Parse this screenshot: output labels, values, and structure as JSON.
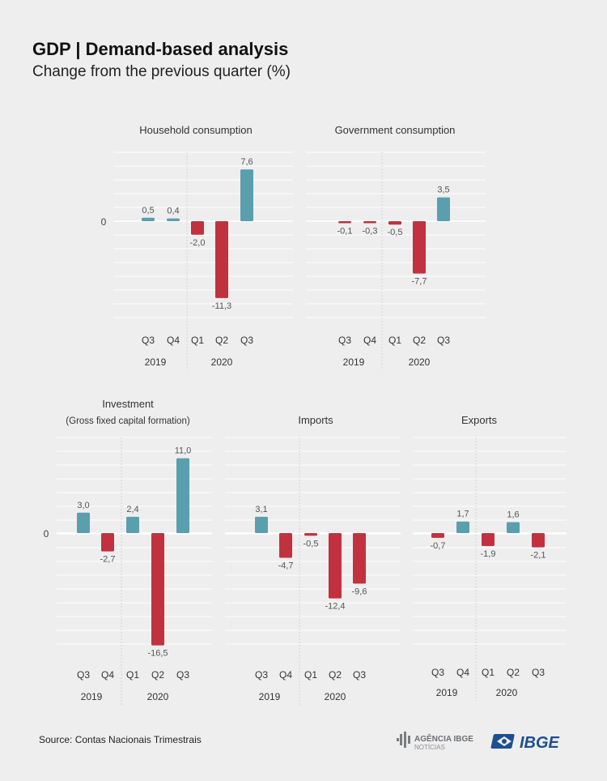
{
  "header": {
    "title": "GDP | Demand-based analysis",
    "subtitle": "Change from the previous quarter (%)"
  },
  "footer": {
    "source": "Source: Contas Nacionais Trimestrais",
    "logo_agencia_text": "AGÊNCIA IBGE NOTÍCIAS",
    "logo_ibge_text": "IBGE"
  },
  "colors": {
    "positive": "#5a9fae",
    "negative": "#c1313f",
    "grid": "#ffffff",
    "text": "#555555"
  },
  "chart_data": [
    {
      "type": "bar",
      "title": "Household consumption",
      "categories": [
        "Q3",
        "Q4",
        "Q1",
        "Q2",
        "Q3"
      ],
      "year_groups": [
        {
          "label": "2019",
          "count": 2
        },
        {
          "label": "2020",
          "count": 3
        }
      ],
      "values": [
        0.5,
        0.4,
        -2.0,
        -11.3,
        7.6
      ],
      "value_labels": [
        "0,5",
        "0,4",
        "-2,0",
        "-11,3",
        "7,6"
      ],
      "zero_label": "0"
    },
    {
      "type": "bar",
      "title": "Government consumption",
      "categories": [
        "Q3",
        "Q4",
        "Q1",
        "Q2",
        "Q3"
      ],
      "year_groups": [
        {
          "label": "2019",
          "count": 2
        },
        {
          "label": "2020",
          "count": 3
        }
      ],
      "values": [
        -0.1,
        -0.3,
        -0.5,
        -7.7,
        3.5
      ],
      "value_labels": [
        "-0,1",
        "-0,3",
        "-0,5",
        "-7,7",
        "3,5"
      ],
      "zero_label": ""
    },
    {
      "type": "bar",
      "title": "Investment",
      "subtitle": "(Gross fixed capital formation)",
      "categories": [
        "Q3",
        "Q4",
        "Q1",
        "Q2",
        "Q3"
      ],
      "year_groups": [
        {
          "label": "2019",
          "count": 2
        },
        {
          "label": "2020",
          "count": 3
        }
      ],
      "values": [
        3.0,
        -2.7,
        2.4,
        -16.5,
        11.0
      ],
      "value_labels": [
        "3,0",
        "-2,7",
        "2,4",
        "-16,5",
        "11,0"
      ],
      "zero_label": "0"
    },
    {
      "type": "bar",
      "title": "Imports",
      "categories": [
        "Q3",
        "Q4",
        "Q1",
        "Q2",
        "Q3"
      ],
      "year_groups": [
        {
          "label": "2019",
          "count": 2
        },
        {
          "label": "2020",
          "count": 3
        }
      ],
      "values": [
        3.1,
        -4.7,
        -0.5,
        -12.4,
        -9.6
      ],
      "value_labels": [
        "3,1",
        "-4,7",
        "-0,5",
        "-12,4",
        "-9,6"
      ],
      "zero_label": ""
    },
    {
      "type": "bar",
      "title": "Exports",
      "categories": [
        "Q3",
        "Q4",
        "Q1",
        "Q2",
        "Q3"
      ],
      "year_groups": [
        {
          "label": "2019",
          "count": 2
        },
        {
          "label": "2020",
          "count": 3
        }
      ],
      "values": [
        -0.7,
        1.7,
        -1.9,
        1.6,
        -2.1
      ],
      "value_labels": [
        "-0,7",
        "1,7",
        "-1,9",
        "1,6",
        "-2,1"
      ],
      "zero_label": ""
    }
  ]
}
